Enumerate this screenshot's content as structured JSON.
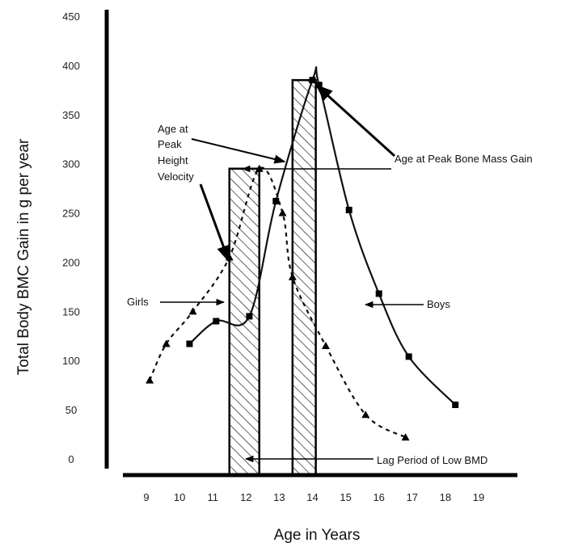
{
  "chart_data": {
    "type": "line",
    "xlabel": "Age in Years",
    "ylabel": "Total Body BMC Gain in g per year",
    "xlim": [
      8.5,
      19.5
    ],
    "ylim": [
      0,
      450
    ],
    "x_ticks": [
      "9",
      "10",
      "11",
      "12",
      "13",
      "14",
      "15",
      "16",
      "17",
      "18",
      "19"
    ],
    "y_ticks": [
      "0",
      "50",
      "100",
      "150",
      "200",
      "250",
      "300",
      "350",
      "400",
      "450"
    ],
    "series": [
      {
        "name": "Girls",
        "style": "dashed",
        "marker": "triangle",
        "x": [
          9.1,
          9.6,
          10.4,
          11.5,
          12.4,
          13.1,
          13.4,
          14.4,
          15.6,
          16.8
        ],
        "y": [
          80,
          117,
          150,
          205,
          295,
          250,
          185,
          115,
          45,
          22
        ]
      },
      {
        "name": "Boys",
        "style": "solid",
        "marker": "square",
        "x": [
          10.3,
          11.1,
          12.1,
          12.9,
          14.0,
          14.2,
          15.1,
          16.0,
          16.9,
          18.3
        ],
        "y": [
          117,
          140,
          145,
          262,
          385,
          380,
          253,
          168,
          104,
          55
        ]
      }
    ],
    "shaded_regions": [
      {
        "x0": 11.5,
        "x1": 12.4
      },
      {
        "x0": 13.4,
        "x1": 14.1
      }
    ],
    "annotations": {
      "peak_height_velocity": [
        "Age at",
        "Peak",
        "Height",
        "Velocity"
      ],
      "peak_bone_mass": "Age at Peak Bone Mass Gain",
      "girls": "Girls",
      "boys": "Boys",
      "lag_period": "Lag Period of Low BMD"
    },
    "grid": false,
    "legend": "none",
    "colors": {
      "lines": "#111111",
      "axis": "#000000"
    }
  }
}
